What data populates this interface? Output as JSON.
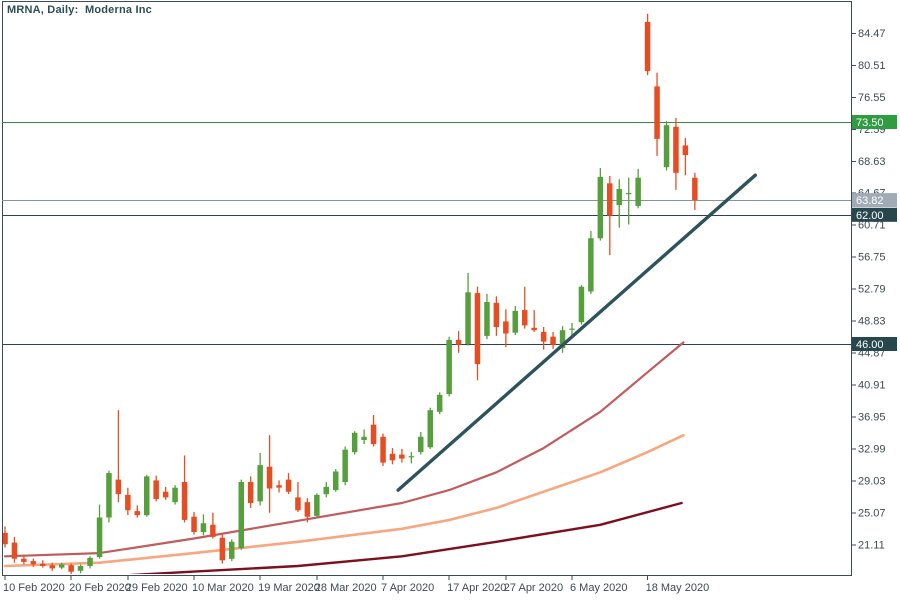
{
  "chart": {
    "title": "MRNA, Daily:  Moderna Inc",
    "symbol": "MRNA",
    "period": "Daily",
    "company": "Moderna Inc"
  },
  "colors": {
    "background": "#ffffff",
    "frame": "#3c4b55",
    "axis_text": "#3c4b55",
    "candle_up": "#55a03c",
    "candle_down": "#e64d22",
    "ma_fast": "#c15b5e",
    "ma_mid": "#f7a67e",
    "ma_slow": "#7c1020",
    "trendline": "#2d545c",
    "level_green": "#2f9c42",
    "level_green_line": "#358d3f",
    "level_gray": "#a0abb5",
    "level_gray_line": "#87949e",
    "level_dark": "#28464e",
    "badge_text": "#ffffff"
  },
  "chart_data": {
    "type": "candlestick",
    "title": "MRNA, Daily: Moderna Inc",
    "xlabel": "",
    "ylabel": "",
    "price_axis": {
      "ticks": [
        "84.47",
        "80.51",
        "76.55",
        "72.59",
        "68.63",
        "64.67",
        "60.71",
        "56.75",
        "52.79",
        "48.83",
        "44.87",
        "40.91",
        "36.95",
        "32.99",
        "29.03",
        "25.07",
        "21.11"
      ]
    },
    "time_axis": {
      "ticks": [
        {
          "i": 0,
          "label": "10 Feb 2020"
        },
        {
          "i": 7,
          "label": "20 Feb 2020"
        },
        {
          "i": 13,
          "label": "29 Feb 2020"
        },
        {
          "i": 20,
          "label": "10 Mar 2020"
        },
        {
          "i": 27,
          "label": "19 Mar 2020"
        },
        {
          "i": 33,
          "label": "28 Mar 2020"
        },
        {
          "i": 40,
          "label": "7 Apr 2020"
        },
        {
          "i": 47,
          "label": "17 Apr 2020"
        },
        {
          "i": 53,
          "label": "27 Apr 2020"
        },
        {
          "i": 60,
          "label": "6 May 2020"
        },
        {
          "i": 68,
          "label": "18 May 2020"
        }
      ]
    },
    "levels": [
      {
        "price": 73.5,
        "label": "73.50",
        "style": "green"
      },
      {
        "price": 63.82,
        "label": "63.82",
        "style": "gray"
      },
      {
        "price": 62.0,
        "label": "62.00",
        "style": "dark"
      },
      {
        "price": 46.0,
        "label": "46.00",
        "style": "dark"
      }
    ],
    "candles": [
      {
        "d": "10 Feb 2020",
        "o": 22.6,
        "h": 23.4,
        "l": 20.8,
        "c": 21.2
      },
      {
        "d": "11 Feb 2020",
        "o": 21.4,
        "h": 22.1,
        "l": 18.9,
        "c": 19.4
      },
      {
        "d": "12 Feb 2020",
        "o": 19.4,
        "h": 19.9,
        "l": 18.7,
        "c": 19.0
      },
      {
        "d": "13 Feb 2020",
        "o": 19.1,
        "h": 19.4,
        "l": 18.4,
        "c": 18.7
      },
      {
        "d": "14 Feb 2020",
        "o": 18.8,
        "h": 19.2,
        "l": 18.3,
        "c": 18.5
      },
      {
        "d": "18 Feb 2020",
        "o": 18.6,
        "h": 18.9,
        "l": 17.9,
        "c": 18.2
      },
      {
        "d": "19 Feb 2020",
        "o": 18.3,
        "h": 18.9,
        "l": 18.1,
        "c": 18.7
      },
      {
        "d": "20 Feb 2020",
        "o": 18.6,
        "h": 18.8,
        "l": 17.5,
        "c": 17.8
      },
      {
        "d": "21 Feb 2020",
        "o": 17.9,
        "h": 18.7,
        "l": 17.6,
        "c": 18.5
      },
      {
        "d": "24 Feb 2020",
        "o": 18.5,
        "h": 19.7,
        "l": 18.2,
        "c": 19.5
      },
      {
        "d": "25 Feb 2020",
        "o": 19.6,
        "h": 26.1,
        "l": 19.4,
        "c": 24.5
      },
      {
        "d": "26 Feb 2020",
        "o": 24.5,
        "h": 30.3,
        "l": 23.9,
        "c": 30.0
      },
      {
        "d": "27 Feb 2020",
        "o": 29.2,
        "h": 37.8,
        "l": 26.4,
        "c": 27.4
      },
      {
        "d": "28 Feb 2020",
        "o": 27.3,
        "h": 28.2,
        "l": 24.8,
        "c": 25.4
      },
      {
        "d": "2 Mar 2020",
        "o": 25.3,
        "h": 26.0,
        "l": 24.5,
        "c": 24.8
      },
      {
        "d": "3 Mar 2020",
        "o": 24.8,
        "h": 29.8,
        "l": 24.6,
        "c": 29.6
      },
      {
        "d": "4 Mar 2020",
        "o": 29.1,
        "h": 29.7,
        "l": 26.5,
        "c": 26.8
      },
      {
        "d": "5 Mar 2020",
        "o": 27.7,
        "h": 28.3,
        "l": 26.7,
        "c": 27.0
      },
      {
        "d": "6 Mar 2020",
        "o": 26.4,
        "h": 28.5,
        "l": 26.1,
        "c": 28.2
      },
      {
        "d": "9 Mar 2020",
        "o": 28.9,
        "h": 32.2,
        "l": 23.9,
        "c": 24.2
      },
      {
        "d": "10 Mar 2020",
        "o": 24.6,
        "h": 25.2,
        "l": 22.4,
        "c": 22.7
      },
      {
        "d": "11 Mar 2020",
        "o": 22.7,
        "h": 24.9,
        "l": 22.3,
        "c": 23.8
      },
      {
        "d": "12 Mar 2020",
        "o": 23.6,
        "h": 25.1,
        "l": 21.9,
        "c": 22.1
      },
      {
        "d": "13 Mar 2020",
        "o": 22.0,
        "h": 22.4,
        "l": 18.8,
        "c": 19.2
      },
      {
        "d": "16 Mar 2020",
        "o": 19.4,
        "h": 21.8,
        "l": 19.1,
        "c": 21.5
      },
      {
        "d": "17 Mar 2020",
        "o": 20.7,
        "h": 29.2,
        "l": 20.5,
        "c": 28.9
      },
      {
        "d": "18 Mar 2020",
        "o": 28.9,
        "h": 29.6,
        "l": 25.7,
        "c": 26.3
      },
      {
        "d": "19 Mar 2020",
        "o": 26.5,
        "h": 32.5,
        "l": 26.0,
        "c": 31.0
      },
      {
        "d": "20 Mar 2020",
        "o": 30.8,
        "h": 34.7,
        "l": 25.1,
        "c": 28.1
      },
      {
        "d": "23 Mar 2020",
        "o": 28.5,
        "h": 29.1,
        "l": 27.6,
        "c": 28.2
      },
      {
        "d": "24 Mar 2020",
        "o": 29.2,
        "h": 30.0,
        "l": 27.4,
        "c": 27.7
      },
      {
        "d": "25 Mar 2020",
        "o": 27.0,
        "h": 28.9,
        "l": 25.2,
        "c": 25.4
      },
      {
        "d": "26 Mar 2020",
        "o": 26.4,
        "h": 26.9,
        "l": 23.9,
        "c": 24.6
      },
      {
        "d": "27 Mar 2020",
        "o": 24.7,
        "h": 27.5,
        "l": 24.4,
        "c": 27.3
      },
      {
        "d": "30 Mar 2020",
        "o": 27.4,
        "h": 28.9,
        "l": 27.0,
        "c": 28.3
      },
      {
        "d": "31 Mar 2020",
        "o": 27.9,
        "h": 30.5,
        "l": 27.7,
        "c": 30.2
      },
      {
        "d": "1 Apr 2020",
        "o": 28.9,
        "h": 33.3,
        "l": 28.5,
        "c": 32.9
      },
      {
        "d": "2 Apr 2020",
        "o": 32.6,
        "h": 35.2,
        "l": 32.3,
        "c": 35.0
      },
      {
        "d": "3 Apr 2020",
        "o": 34.1,
        "h": 35.4,
        "l": 33.6,
        "c": 34.5
      },
      {
        "d": "6 Apr 2020",
        "o": 36.0,
        "h": 37.2,
        "l": 33.3,
        "c": 33.6
      },
      {
        "d": "7 Apr 2020",
        "o": 34.5,
        "h": 34.9,
        "l": 30.9,
        "c": 31.3
      },
      {
        "d": "8 Apr 2020",
        "o": 32.4,
        "h": 33.1,
        "l": 31.1,
        "c": 31.6
      },
      {
        "d": "9 Apr 2020",
        "o": 32.3,
        "h": 33.0,
        "l": 31.3,
        "c": 31.8
      },
      {
        "d": "13 Apr 2020",
        "o": 32.0,
        "h": 32.6,
        "l": 31.2,
        "c": 32.1
      },
      {
        "d": "14 Apr 2020",
        "o": 32.6,
        "h": 35.1,
        "l": 32.3,
        "c": 34.5
      },
      {
        "d": "15 Apr 2020",
        "o": 33.2,
        "h": 38.1,
        "l": 33.0,
        "c": 37.8
      },
      {
        "d": "16 Apr 2020",
        "o": 37.6,
        "h": 40.0,
        "l": 37.3,
        "c": 39.7
      },
      {
        "d": "17 Apr 2020",
        "o": 39.8,
        "h": 46.9,
        "l": 39.5,
        "c": 46.5
      },
      {
        "d": "20 Apr 2020",
        "o": 46.5,
        "h": 47.6,
        "l": 44.9,
        "c": 45.9
      },
      {
        "d": "21 Apr 2020",
        "o": 46.0,
        "h": 54.8,
        "l": 45.8,
        "c": 52.4
      },
      {
        "d": "22 Apr 2020",
        "o": 52.3,
        "h": 53.1,
        "l": 41.5,
        "c": 43.5
      },
      {
        "d": "23 Apr 2020",
        "o": 47.0,
        "h": 52.2,
        "l": 46.6,
        "c": 51.2
      },
      {
        "d": "24 Apr 2020",
        "o": 51.1,
        "h": 51.9,
        "l": 47.0,
        "c": 48.1
      },
      {
        "d": "27 Apr 2020",
        "o": 48.8,
        "h": 50.3,
        "l": 45.6,
        "c": 47.3
      },
      {
        "d": "28 Apr 2020",
        "o": 47.4,
        "h": 50.7,
        "l": 47.1,
        "c": 50.1
      },
      {
        "d": "29 Apr 2020",
        "o": 50.2,
        "h": 53.1,
        "l": 47.9,
        "c": 48.3
      },
      {
        "d": "30 Apr 2020",
        "o": 48.0,
        "h": 50.2,
        "l": 47.5,
        "c": 47.7
      },
      {
        "d": "1 May 2020",
        "o": 47.5,
        "h": 48.1,
        "l": 45.3,
        "c": 46.3
      },
      {
        "d": "4 May 2020",
        "o": 46.9,
        "h": 47.5,
        "l": 45.4,
        "c": 45.9
      },
      {
        "d": "5 May 2020",
        "o": 45.5,
        "h": 48.2,
        "l": 44.9,
        "c": 47.7
      },
      {
        "d": "6 May 2020",
        "o": 47.8,
        "h": 48.6,
        "l": 47.1,
        "c": 47.9
      },
      {
        "d": "7 May 2020",
        "o": 48.7,
        "h": 53.3,
        "l": 48.4,
        "c": 53.1
      },
      {
        "d": "8 May 2020",
        "o": 52.5,
        "h": 60.0,
        "l": 52.2,
        "c": 59.1
      },
      {
        "d": "11 May 2020",
        "o": 59.1,
        "h": 67.8,
        "l": 58.8,
        "c": 66.7
      },
      {
        "d": "12 May 2020",
        "o": 65.9,
        "h": 66.8,
        "l": 57.0,
        "c": 61.9
      },
      {
        "d": "13 May 2020",
        "o": 63.2,
        "h": 66.4,
        "l": 60.4,
        "c": 65.2
      },
      {
        "d": "14 May 2020",
        "o": 64.6,
        "h": 66.6,
        "l": 60.8,
        "c": 64.7
      },
      {
        "d": "15 May 2020",
        "o": 63.1,
        "h": 67.7,
        "l": 62.8,
        "c": 66.6
      },
      {
        "d": "18 May 2020",
        "o": 85.9,
        "h": 86.9,
        "l": 79.3,
        "c": 79.8
      },
      {
        "d": "19 May 2020",
        "o": 77.9,
        "h": 79.6,
        "l": 69.3,
        "c": 71.4
      },
      {
        "d": "20 May 2020",
        "o": 67.9,
        "h": 73.6,
        "l": 67.5,
        "c": 73.1
      },
      {
        "d": "21 May 2020",
        "o": 72.9,
        "h": 74.0,
        "l": 65.1,
        "c": 67.2
      },
      {
        "d": "22 May 2020",
        "o": 70.6,
        "h": 71.5,
        "l": 66.9,
        "c": 69.4
      },
      {
        "d": "26 May 2020",
        "o": 66.6,
        "h": 67.2,
        "l": 62.6,
        "c": 63.82
      }
    ],
    "moving_averages": [
      {
        "name": "ma-fast",
        "color_key": "ma_fast",
        "width": 2.2,
        "points": [
          [
            0,
            19.7
          ],
          [
            10,
            20.1
          ],
          [
            20,
            21.9
          ],
          [
            31,
            24.1
          ],
          [
            42,
            26.3
          ],
          [
            47,
            27.9
          ],
          [
            52,
            30.1
          ],
          [
            57,
            33.1
          ],
          [
            63,
            37.6
          ],
          [
            68,
            42.5
          ],
          [
            71.8,
            46.2
          ]
        ]
      },
      {
        "name": "ma-mid",
        "color_key": "ma_mid",
        "width": 2.6,
        "points": [
          [
            0,
            18.5
          ],
          [
            10,
            18.9
          ],
          [
            20,
            20.1
          ],
          [
            31,
            21.5
          ],
          [
            42,
            23.1
          ],
          [
            47,
            24.2
          ],
          [
            52,
            25.7
          ],
          [
            57,
            27.7
          ],
          [
            63,
            30.1
          ],
          [
            68,
            32.6
          ],
          [
            71.8,
            34.7
          ]
        ]
      },
      {
        "name": "ma-slow",
        "color_key": "ma_slow",
        "width": 2.4,
        "points": [
          [
            9,
            17.1
          ],
          [
            20,
            17.8
          ],
          [
            31,
            18.5
          ],
          [
            42,
            19.7
          ],
          [
            52,
            21.5
          ],
          [
            63,
            23.6
          ],
          [
            71.6,
            26.3
          ]
        ]
      }
    ],
    "trendline": {
      "from": [
        41.6,
        27.9
      ],
      "to": [
        79.4,
        66.9
      ]
    }
  }
}
